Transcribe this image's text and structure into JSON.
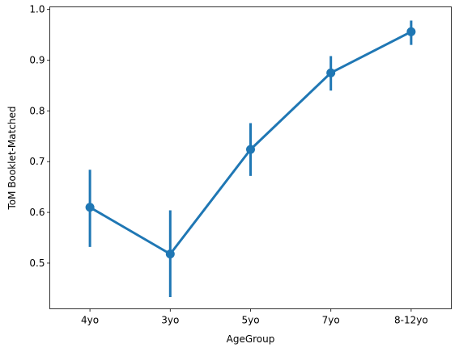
{
  "chart_data": {
    "type": "line",
    "categories": [
      "4yo",
      "3yo",
      "5yo",
      "7yo",
      "8-12yo"
    ],
    "values": [
      0.61,
      0.518,
      0.724,
      0.875,
      0.956
    ],
    "error_bars": [
      [
        0.532,
        0.684
      ],
      [
        0.433,
        0.604
      ],
      [
        0.672,
        0.776
      ],
      [
        0.84,
        0.908
      ],
      [
        0.93,
        0.978
      ]
    ],
    "title": "",
    "xlabel": "AgeGroup",
    "ylabel": "ToM Booklet-Matched",
    "ylim": [
      0.41,
      1.005
    ],
    "yticks": [
      0.5,
      0.6,
      0.7,
      0.8,
      0.9,
      1.0
    ],
    "ytick_labels": [
      "0.5",
      "0.6",
      "0.7",
      "0.8",
      "0.9",
      "1.0"
    ],
    "grid": false,
    "color": "#1f77b4"
  }
}
